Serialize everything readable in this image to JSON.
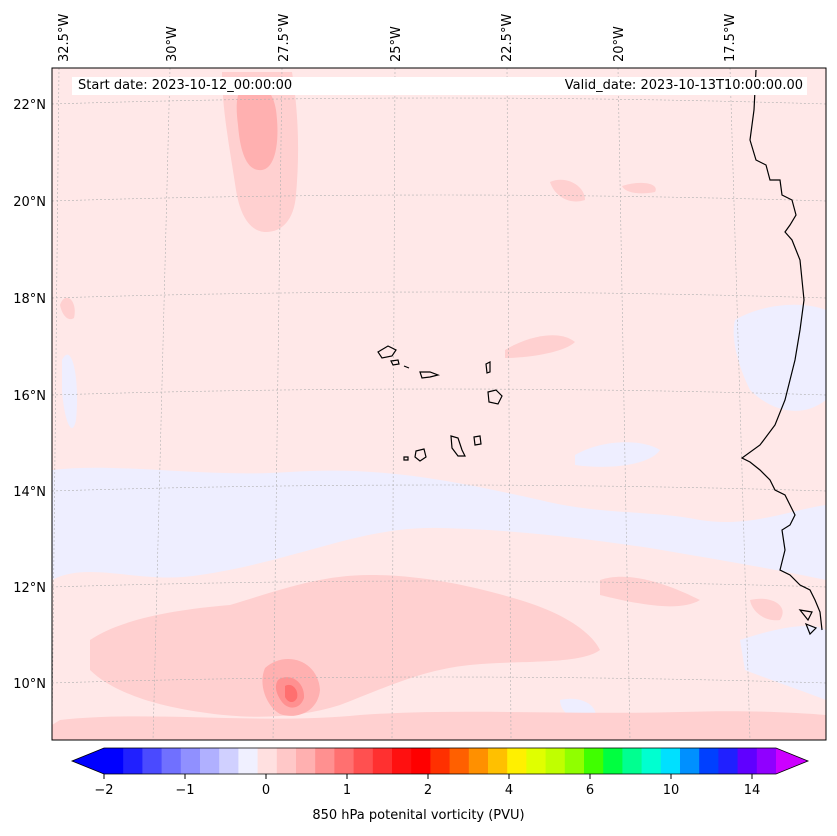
{
  "map": {
    "start_date": "Start date: 2023-10-12_00:00:00",
    "valid_date": "Valid_date: 2023-10-13T10:00:00.00",
    "lon_labels": [
      "32.5°W",
      "30°W",
      "27.5°W",
      "25°W",
      "22.5°W",
      "20°W",
      "17.5°W"
    ],
    "lat_labels": [
      "22°N",
      "20°N",
      "18°N",
      "16°N",
      "14°N",
      "12°N",
      "10°N"
    ],
    "variable": "850 hPa potenital vorticity (PVU)"
  },
  "colorbar": {
    "tick_labels": [
      "−2",
      "−1",
      "0",
      "1",
      "2",
      "4",
      "6",
      "10",
      "14"
    ],
    "colors": [
      "#0000ff",
      "#2020ff",
      "#4a4aff",
      "#7070ff",
      "#9090ff",
      "#b0b0ff",
      "#d0d0ff",
      "#f0f0ff",
      "#ffe0e0",
      "#ffc8c8",
      "#ffb0b0",
      "#ff9090",
      "#ff7070",
      "#ff5050",
      "#ff3030",
      "#ff1010",
      "#ff0000",
      "#ff3000",
      "#ff6000",
      "#ff9000",
      "#ffc000",
      "#fff000",
      "#e0ff00",
      "#c0ff00",
      "#90ff00",
      "#40ff00",
      "#00ff40",
      "#00ff90",
      "#00ffd0",
      "#00e0ff",
      "#0090ff",
      "#0040ff",
      "#2020ff",
      "#6000ff",
      "#9000ff"
    ],
    "under_color": "#0000ff",
    "over_color": "#cc00ff"
  },
  "field_colors": {
    "background": "#ffe8e8",
    "light_positive": "#ffd0d0",
    "medium_positive": "#ffb0b0",
    "strong_positive": "#ff9090",
    "peak": "#ff6f6f",
    "negative": "#eeeeff"
  }
}
